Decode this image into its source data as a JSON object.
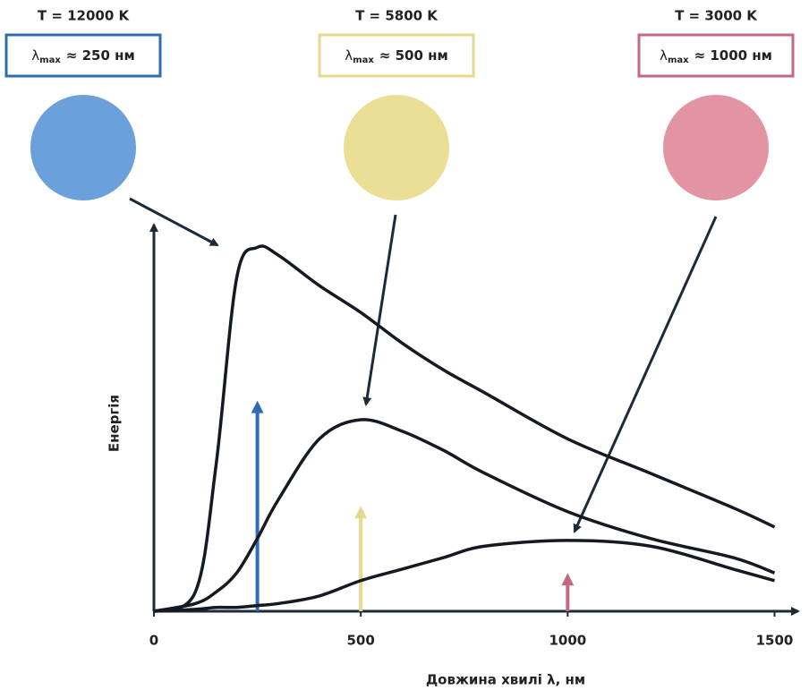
{
  "chart_data": {
    "type": "line",
    "x_label": "Довжина хвилі λ, нм",
    "y_label": "Енергія",
    "peak_label_symbol": "λ",
    "peak_label_sub": "max",
    "line_color": "#151a22",
    "xlim": [
      0,
      1540
    ],
    "ylim": [
      0,
      100
    ],
    "xticks": [
      0,
      500,
      1000,
      1500
    ],
    "x": [
      0,
      100,
      150,
      200,
      250,
      300,
      400,
      500,
      600,
      700,
      800,
      1000,
      1200,
      1400,
      1500
    ],
    "series": [
      {
        "name": "T = 12000 K",
        "color": "#2e6db4",
        "swatch": "#5b96d6",
        "peak_label": "≈ 250 нм",
        "lambda_max": 250,
        "marker_height": 55,
        "values": [
          0,
          5,
          38,
          87,
          95,
          93,
          85,
          78,
          70,
          63,
          57,
          45,
          36,
          27,
          22
        ]
      },
      {
        "name": "T = 5800 K",
        "color": "#e6d98f",
        "swatch": "#e8dc8a",
        "peak_label": "≈ 500 нм",
        "lambda_max": 500,
        "marker_height": 27.5,
        "values": [
          0,
          2,
          5,
          10,
          19,
          29,
          45,
          50,
          47,
          42,
          36,
          26,
          19,
          14,
          10
        ]
      },
      {
        "name": "T = 3000 K",
        "color": "#c46a80",
        "swatch": "#e08898",
        "peak_label": "≈ 1000 нм",
        "lambda_max": 1000,
        "marker_height": 10,
        "values": [
          0,
          0.5,
          1,
          1,
          1.5,
          2,
          4,
          8,
          11,
          14,
          17,
          18.5,
          17,
          11,
          8
        ]
      }
    ]
  }
}
